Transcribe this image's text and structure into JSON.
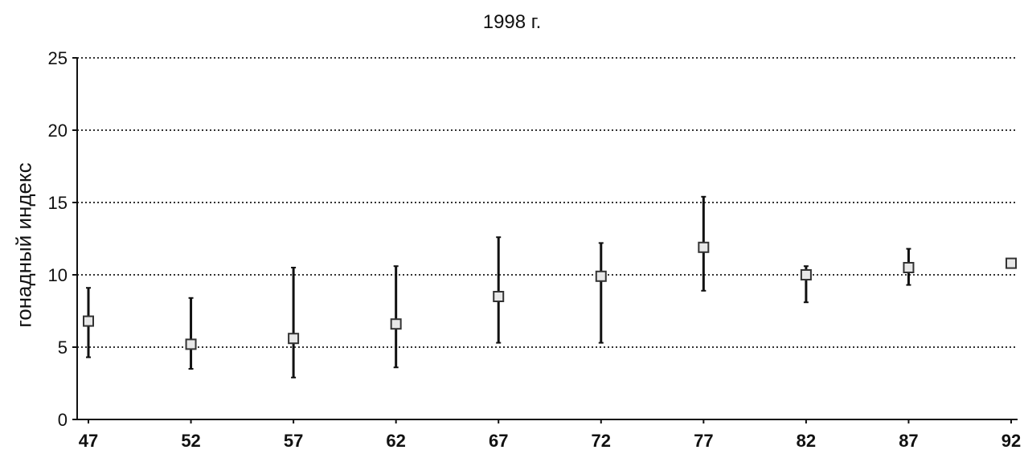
{
  "chart_data": {
    "type": "scatter",
    "title": "1998 г.",
    "xlabel": "",
    "ylabel": "гонадный индекс",
    "x": [
      47,
      52,
      57,
      62,
      67,
      72,
      77,
      82,
      87,
      92
    ],
    "y": [
      6.8,
      5.2,
      5.6,
      6.6,
      8.5,
      9.9,
      11.9,
      10.0,
      10.5,
      10.8
    ],
    "error_low": [
      4.3,
      3.5,
      2.9,
      3.6,
      5.3,
      5.3,
      8.9,
      8.1,
      9.3,
      10.8
    ],
    "error_high": [
      9.1,
      8.4,
      10.5,
      10.6,
      12.6,
      12.2,
      15.4,
      10.6,
      11.8,
      10.8
    ],
    "xlim": [
      47,
      92
    ],
    "ylim": [
      0,
      25
    ],
    "xticks": [
      "47",
      "52",
      "57",
      "62",
      "67",
      "72",
      "77",
      "82",
      "87",
      "92"
    ],
    "yticks": [
      "0",
      "5",
      "10",
      "15",
      "20",
      "25"
    ],
    "grid": "horizontal dotted",
    "legend": "none",
    "colors": {
      "marker": "#333333",
      "error_bar": "#111111",
      "grid": "#333333",
      "axis": "#111111"
    }
  }
}
